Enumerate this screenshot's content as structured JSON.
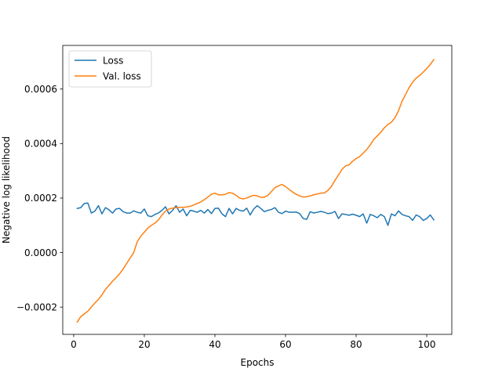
{
  "chart_data": {
    "type": "line",
    "xlabel": "Epochs",
    "ylabel": "Negative log likelihood",
    "xlim": [
      -3.1,
      107.1
    ],
    "ylim": [
      -0.0003,
      0.00076
    ],
    "xticks": [
      0,
      20,
      40,
      60,
      80,
      100
    ],
    "xtick_labels": [
      "0",
      "20",
      "40",
      "60",
      "80",
      "100"
    ],
    "yticks": [
      -0.0002,
      0.0,
      0.0002,
      0.0004,
      0.0006
    ],
    "ytick_labels": [
      "−0.0002",
      "0.0000",
      "0.0002",
      "0.0004",
      "0.0006"
    ],
    "grid": false,
    "legend_position": "top-left",
    "series": [
      {
        "name": "Loss",
        "color": "#1f77b4",
        "x": [
          1,
          2,
          3,
          4,
          5,
          6,
          7,
          8,
          9,
          10,
          11,
          12,
          13,
          14,
          15,
          16,
          17,
          18,
          19,
          20,
          21,
          22,
          23,
          24,
          25,
          26,
          27,
          28,
          29,
          30,
          31,
          32,
          33,
          34,
          35,
          36,
          37,
          38,
          39,
          40,
          41,
          42,
          43,
          44,
          45,
          46,
          47,
          48,
          49,
          50,
          51,
          52,
          53,
          54,
          55,
          56,
          57,
          58,
          59,
          60,
          61,
          62,
          63,
          64,
          65,
          66,
          67,
          68,
          69,
          70,
          71,
          72,
          73,
          74,
          75,
          76,
          77,
          78,
          79,
          80,
          81,
          82,
          83,
          84,
          85,
          86,
          87,
          88,
          89,
          90,
          91,
          92,
          93,
          94,
          95,
          96,
          97,
          98,
          99,
          100,
          101,
          102
        ],
        "values": [
          0.000162,
          0.000165,
          0.00018,
          0.000182,
          0.000145,
          0.000152,
          0.000172,
          0.000142,
          0.000165,
          0.000157,
          0.000145,
          0.00016,
          0.000162,
          0.00015,
          0.000145,
          0.000145,
          0.000153,
          0.000148,
          0.000145,
          0.00016,
          0.000135,
          0.000132,
          0.00014,
          0.000145,
          0.000155,
          0.000168,
          0.000142,
          0.000155,
          0.000172,
          0.000148,
          0.00016,
          0.000135,
          0.000155,
          0.000152,
          0.000148,
          0.000155,
          0.000145,
          0.000158,
          0.000143,
          0.000162,
          0.000163,
          0.000142,
          0.000132,
          0.000162,
          0.000142,
          0.000162,
          0.000155,
          0.000152,
          0.000163,
          0.000138,
          0.00016,
          0.000172,
          0.000162,
          0.00015,
          0.000155,
          0.000158,
          0.000165,
          0.000148,
          0.000143,
          0.000152,
          0.000148,
          0.000148,
          0.000149,
          0.000143,
          0.000125,
          0.000122,
          0.00015,
          0.000145,
          0.000148,
          0.000151,
          0.000148,
          0.000143,
          0.000145,
          0.000151,
          0.000125,
          0.000142,
          0.00014,
          0.000137,
          0.000141,
          0.000137,
          0.000132,
          0.000142,
          0.000108,
          0.00014,
          0.000135,
          0.000128,
          0.00014,
          0.000132,
          0.0001,
          0.000142,
          0.000135,
          0.000153,
          0.00014,
          0.000135,
          0.000132,
          0.000118,
          0.000138,
          0.000132,
          0.000118,
          0.000125,
          0.000138,
          0.00012
        ]
      },
      {
        "name": "Val. loss",
        "color": "#ff7f0e",
        "x": [
          1,
          2,
          3,
          4,
          5,
          6,
          7,
          8,
          9,
          10,
          11,
          12,
          13,
          14,
          15,
          16,
          17,
          18,
          19,
          20,
          21,
          22,
          23,
          24,
          25,
          26,
          27,
          28,
          29,
          30,
          31,
          32,
          33,
          34,
          35,
          36,
          37,
          38,
          39,
          40,
          41,
          42,
          43,
          44,
          45,
          46,
          47,
          48,
          49,
          50,
          51,
          52,
          53,
          54,
          55,
          56,
          57,
          58,
          59,
          60,
          61,
          62,
          63,
          64,
          65,
          66,
          67,
          68,
          69,
          70,
          71,
          72,
          73,
          74,
          75,
          76,
          77,
          78,
          79,
          80,
          81,
          82,
          83,
          84,
          85,
          86,
          87,
          88,
          89,
          90,
          91,
          92,
          93,
          94,
          95,
          96,
          97,
          98,
          99,
          100,
          101,
          102
        ],
        "values": [
          -0.000255,
          -0.000235,
          -0.000225,
          -0.000215,
          -0.0002,
          -0.000185,
          -0.000172,
          -0.000155,
          -0.000135,
          -0.00012,
          -0.000105,
          -9.2e-05,
          -7.8e-05,
          -6e-05,
          -4e-05,
          -2e-05,
          0.0,
          4e-05,
          6e-05,
          7.5e-05,
          9e-05,
          0.0001,
          0.000108,
          0.00012,
          0.000138,
          0.000152,
          0.00016,
          0.000163,
          0.000165,
          0.000166,
          0.000166,
          0.000167,
          0.00017,
          0.000175,
          0.00018,
          0.000186,
          0.000194,
          0.000204,
          0.000214,
          0.000218,
          0.000212,
          0.000212,
          0.000214,
          0.00022,
          0.000218,
          0.00021,
          0.0002,
          0.000197,
          0.0002,
          0.000206,
          0.00021,
          0.000208,
          0.000203,
          0.000203,
          0.00021,
          0.000224,
          0.000238,
          0.000245,
          0.00025,
          0.000242,
          0.000232,
          0.000222,
          0.000214,
          0.000208,
          0.000204,
          0.000205,
          0.000208,
          0.000212,
          0.000215,
          0.000218,
          0.000219,
          0.000228,
          0.000243,
          0.000265,
          0.000285,
          0.000305,
          0.000318,
          0.000322,
          0.000335,
          0.000345,
          0.000352,
          0.000365,
          0.000378,
          0.000395,
          0.000415,
          0.000428,
          0.000442,
          0.000458,
          0.00047,
          0.000478,
          0.000495,
          0.00052,
          0.000555,
          0.00058,
          0.000605,
          0.000625,
          0.00064,
          0.00065,
          0.000662,
          0.000675,
          0.00069,
          0.000708
        ]
      }
    ]
  }
}
